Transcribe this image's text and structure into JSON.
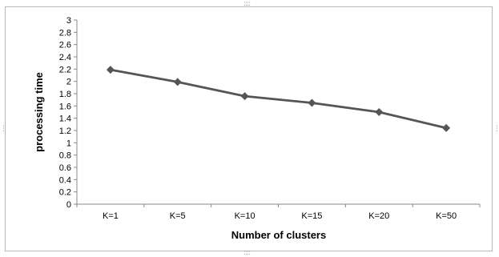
{
  "chart_data": {
    "type": "line",
    "categories": [
      "K=1",
      "K=5",
      "K=10",
      "K=15",
      "K=20",
      "K=50"
    ],
    "series": [
      {
        "values": [
          2.19,
          1.99,
          1.76,
          1.65,
          1.5,
          1.24
        ],
        "color": "#555555",
        "marker": "diamond"
      }
    ],
    "xlabel": "Number of clusters",
    "ylabel": "processing time",
    "ylim": [
      0,
      3
    ],
    "yticks": [
      "0",
      "0.2",
      "0.4",
      "0.6",
      "0.8",
      "1",
      "1.2",
      "1.4",
      "1.6",
      "1.8",
      "2",
      "2.2",
      "2.4",
      "2.6",
      "2.8",
      "3"
    ],
    "grid": false,
    "legend": "none"
  }
}
